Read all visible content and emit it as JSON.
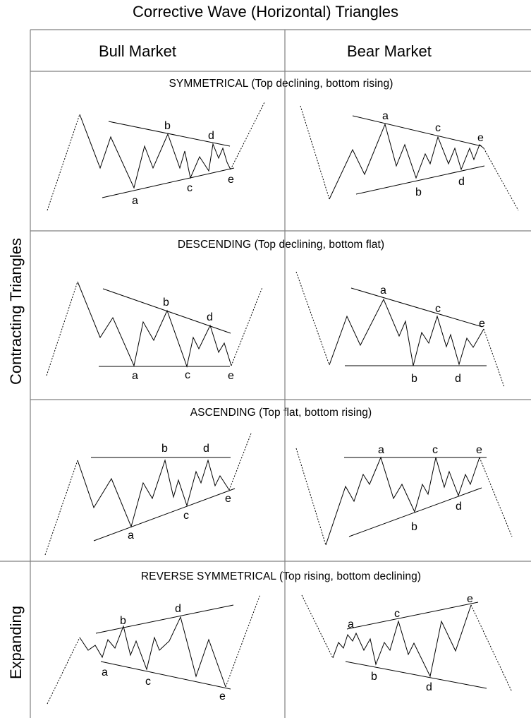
{
  "title": "Corrective Wave (Horizontal) Triangles",
  "columns": {
    "bull": "Bull Market",
    "bear": "Bear Market"
  },
  "groups": {
    "contracting": "Contracting Triangles",
    "expanding": "Expanding"
  },
  "sections": [
    {
      "id": "symmetrical",
      "title": "SYMMETRICAL (Top declining, bottom rising)"
    },
    {
      "id": "descending",
      "title": "DESCENDING (Top declining, bottom flat)"
    },
    {
      "id": "ascending",
      "title": "ASCENDING (Top flat, bottom rising)"
    },
    {
      "id": "reverse",
      "title": "REVERSE SYMMETRICAL  (Top rising, bottom declining)"
    }
  ],
  "wave_labels": [
    "a",
    "b",
    "c",
    "d",
    "e"
  ],
  "colors": {
    "line": "#000000",
    "grid": "#808080"
  }
}
